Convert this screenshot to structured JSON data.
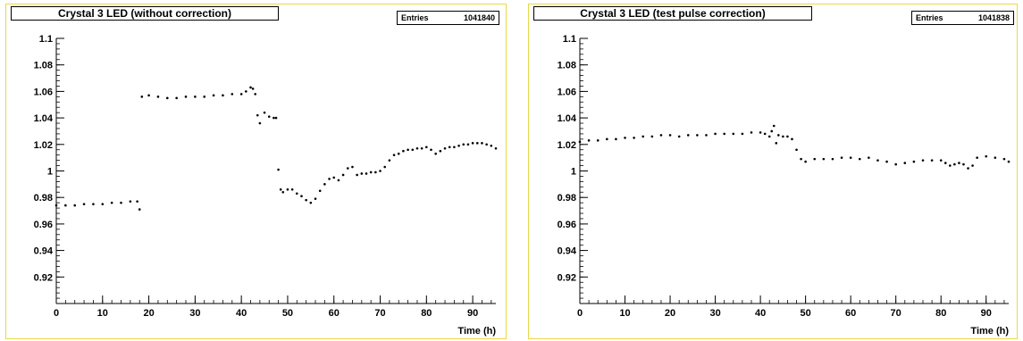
{
  "colors": {
    "frame": "#e8d84a",
    "ink": "#000000",
    "background": "#ffffff"
  },
  "chart_data": [
    {
      "type": "scatter",
      "title": "Crystal 3 LED (without correction)",
      "stats": {
        "label": "Entries",
        "value": "1041840"
      },
      "xlabel": "Time (h)",
      "ylabel": "",
      "xlim": [
        0,
        95
      ],
      "ylim": [
        0.9,
        1.1
      ],
      "xticks": [
        0,
        10,
        20,
        30,
        40,
        50,
        60,
        70,
        80,
        90
      ],
      "yticks": [
        0.92,
        0.94,
        0.96,
        0.98,
        1,
        1.02,
        1.04,
        1.06,
        1.08,
        1.1
      ],
      "ytick_labels": [
        "0.92",
        "0.94",
        "0.96",
        "0.98",
        "1",
        "1.02",
        "1.04",
        "1.06",
        "1.08",
        "1.1"
      ],
      "xtick_labels": [
        "0",
        "10",
        "20",
        "30",
        "40",
        "50",
        "60",
        "70",
        "80",
        "90"
      ],
      "x": [
        0,
        2,
        4,
        6,
        8,
        10,
        12,
        14,
        16,
        17.5,
        18,
        18.5,
        20,
        22,
        24,
        26,
        28,
        30,
        32,
        34,
        36,
        38,
        40,
        41,
        42,
        42.5,
        43,
        43.5,
        44,
        45,
        46,
        47,
        47.5,
        48,
        48.5,
        49,
        50,
        51,
        52,
        53,
        54,
        55,
        56,
        57,
        58,
        59,
        60,
        61,
        62,
        63,
        64,
        65,
        66,
        67,
        68,
        69,
        70,
        71,
        72,
        73,
        74,
        75,
        76,
        77,
        78,
        79,
        80,
        81,
        82,
        83,
        84,
        85,
        86,
        87,
        88,
        89,
        90,
        91,
        92,
        93,
        94,
        95
      ],
      "y": [
        0.974,
        0.974,
        0.974,
        0.975,
        0.975,
        0.975,
        0.976,
        0.976,
        0.977,
        0.977,
        0.971,
        1.056,
        1.057,
        1.056,
        1.055,
        1.055,
        1.056,
        1.056,
        1.056,
        1.057,
        1.057,
        1.058,
        1.058,
        1.06,
        1.063,
        1.062,
        1.058,
        1.042,
        1.036,
        1.044,
        1.041,
        1.04,
        1.04,
        1.001,
        0.986,
        0.984,
        0.986,
        0.986,
        0.983,
        0.981,
        0.978,
        0.976,
        0.979,
        0.985,
        0.99,
        0.994,
        0.995,
        0.993,
        0.997,
        1.002,
        1.003,
        0.997,
        0.998,
        0.998,
        0.999,
        0.999,
        1.0,
        1.003,
        1.008,
        1.012,
        1.013,
        1.015,
        1.016,
        1.016,
        1.017,
        1.017,
        1.018,
        1.016,
        1.013,
        1.015,
        1.017,
        1.018,
        1.018,
        1.019,
        1.02,
        1.02,
        1.021,
        1.021,
        1.021,
        1.02,
        1.019,
        1.017
      ]
    },
    {
      "type": "scatter",
      "title": "Crystal 3 LED (test pulse correction)",
      "stats": {
        "label": "Entries",
        "value": "1041838"
      },
      "xlabel": "Time (h)",
      "ylabel": "",
      "xlim": [
        0,
        95
      ],
      "ylim": [
        0.9,
        1.1
      ],
      "xticks": [
        0,
        10,
        20,
        30,
        40,
        50,
        60,
        70,
        80,
        90
      ],
      "yticks": [
        0.92,
        0.94,
        0.96,
        0.98,
        1,
        1.02,
        1.04,
        1.06,
        1.08,
        1.1
      ],
      "ytick_labels": [
        "0.92",
        "0.94",
        "0.96",
        "0.98",
        "1",
        "1.02",
        "1.04",
        "1.06",
        "1.08",
        "1.1"
      ],
      "xtick_labels": [
        "0",
        "10",
        "20",
        "30",
        "40",
        "50",
        "60",
        "70",
        "80",
        "90"
      ],
      "x": [
        0,
        2,
        4,
        6,
        8,
        10,
        12,
        14,
        16,
        18,
        20,
        22,
        24,
        26,
        28,
        30,
        32,
        34,
        36,
        38,
        40,
        41,
        42,
        42.5,
        43,
        43.5,
        44,
        45,
        46,
        47,
        48,
        49,
        50,
        52,
        54,
        56,
        58,
        60,
        62,
        64,
        66,
        68,
        70,
        72,
        74,
        76,
        78,
        80,
        81,
        82,
        83,
        84,
        85,
        86,
        87,
        88,
        90,
        92,
        94,
        95
      ],
      "y": [
        1.022,
        1.023,
        1.023,
        1.024,
        1.024,
        1.025,
        1.025,
        1.026,
        1.026,
        1.027,
        1.027,
        1.026,
        1.027,
        1.027,
        1.027,
        1.028,
        1.028,
        1.028,
        1.028,
        1.029,
        1.029,
        1.028,
        1.026,
        1.03,
        1.034,
        1.021,
        1.027,
        1.026,
        1.026,
        1.024,
        1.016,
        1.009,
        1.007,
        1.009,
        1.009,
        1.009,
        1.01,
        1.01,
        1.009,
        1.01,
        1.008,
        1.007,
        1.005,
        1.006,
        1.007,
        1.008,
        1.008,
        1.008,
        1.006,
        1.004,
        1.005,
        1.006,
        1.005,
        1.002,
        1.004,
        1.01,
        1.011,
        1.01,
        1.009,
        1.007
      ]
    }
  ]
}
